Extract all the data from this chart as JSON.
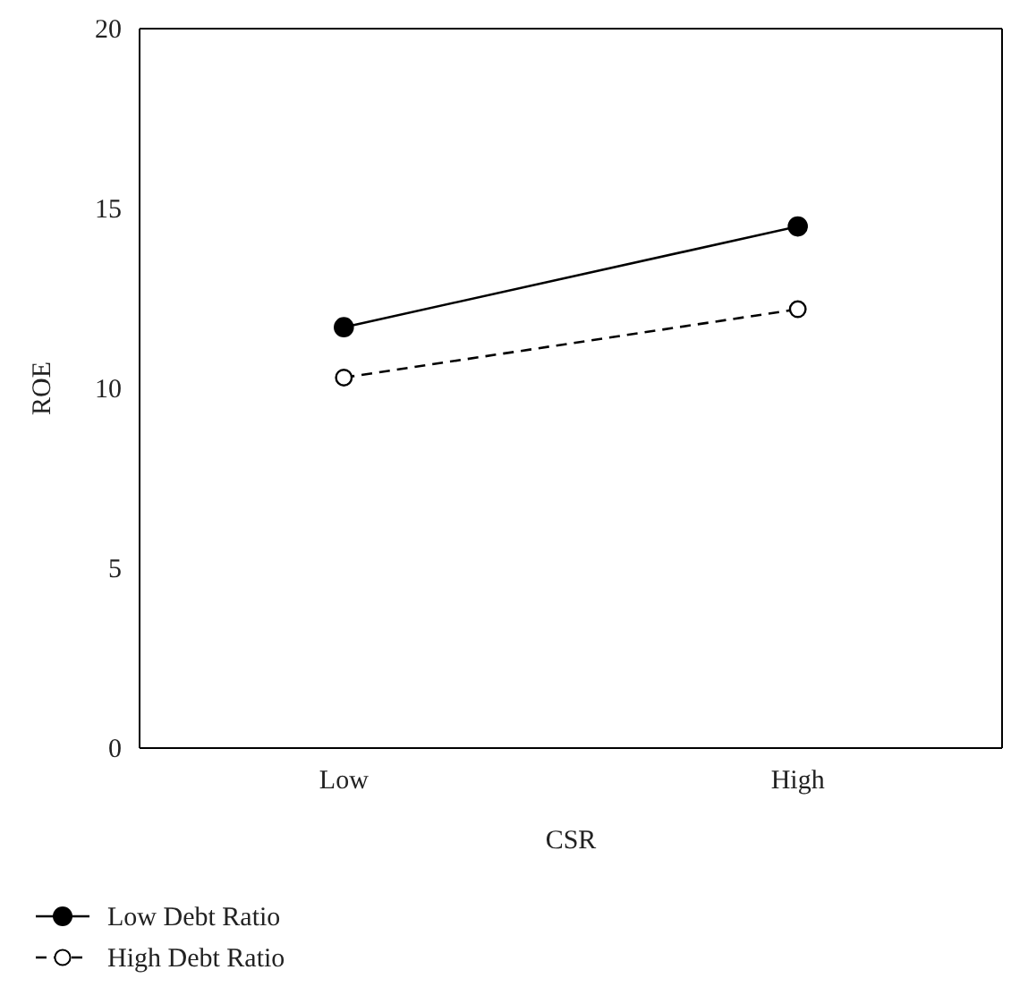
{
  "chart_data": {
    "type": "line",
    "xlabel": "CSR",
    "ylabel": "ROE",
    "categories": [
      "Low",
      "High"
    ],
    "series": [
      {
        "name": "Low Debt Ratio",
        "color": "#000000",
        "values": [
          11.7,
          14.5
        ],
        "line_style": "solid"
      },
      {
        "name": "High Debt Ratio",
        "color": "#000000",
        "values": [
          10.3,
          12.2
        ],
        "line_style": "dashed"
      }
    ],
    "ylim": [
      0,
      20
    ],
    "yticks": [
      0,
      5,
      10,
      15,
      20
    ],
    "marker": "circle",
    "legend": "bottom left",
    "grid": false
  }
}
